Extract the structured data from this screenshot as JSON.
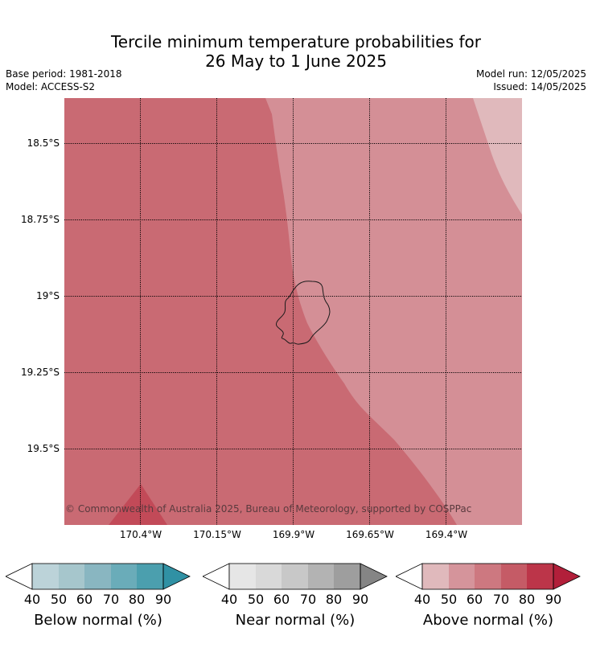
{
  "title": {
    "line1": "Tercile minimum temperature probabilities for",
    "line2": "26 May to 1 June 2025"
  },
  "meta": {
    "base_period": "Base period: 1981-2018",
    "model": "Model: ACCESS-S2",
    "model_run": "Model run: 12/05/2025",
    "issued": "Issued: 14/05/2025"
  },
  "map": {
    "lat_labels": [
      "18.5°S",
      "18.75°S",
      "19°S",
      "19.25°S",
      "19.5°S"
    ],
    "lon_labels": [
      "170.4°W",
      "170.15°W",
      "169.9°W",
      "169.65°W",
      "169.4°W"
    ],
    "copyright": "© Commonwealth of Australia 2025, Bureau of Meteorology, supported by COSPPac",
    "colors": {
      "above_50_60": "#d48f96",
      "above_60_70": "#c96a73",
      "above_40_50": "#e0b9bc",
      "above_70_80": "#c24a58"
    },
    "island": "Niue"
  },
  "colorbars": [
    {
      "label": "Below normal (%)",
      "ticks": [
        "40",
        "50",
        "60",
        "70",
        "80",
        "90"
      ],
      "colors": [
        "#ffffff",
        "#bcd3d9",
        "#a6c6cc",
        "#89b6c1",
        "#6aacb9",
        "#4b9fae",
        "#3091a4"
      ]
    },
    {
      "label": "Near normal (%)",
      "ticks": [
        "40",
        "50",
        "60",
        "70",
        "80",
        "90"
      ],
      "colors": [
        "#ffffff",
        "#e6e6e6",
        "#d9d9d9",
        "#c8c8c8",
        "#b3b3b3",
        "#9e9e9e",
        "#858585"
      ]
    },
    {
      "label": "Above normal (%)",
      "ticks": [
        "40",
        "50",
        "60",
        "70",
        "80",
        "90"
      ],
      "colors": [
        "#ffffff",
        "#e0b9bc",
        "#d5949b",
        "#cd7880",
        "#c55b66",
        "#bc3549",
        "#b21f3a"
      ]
    }
  ]
}
